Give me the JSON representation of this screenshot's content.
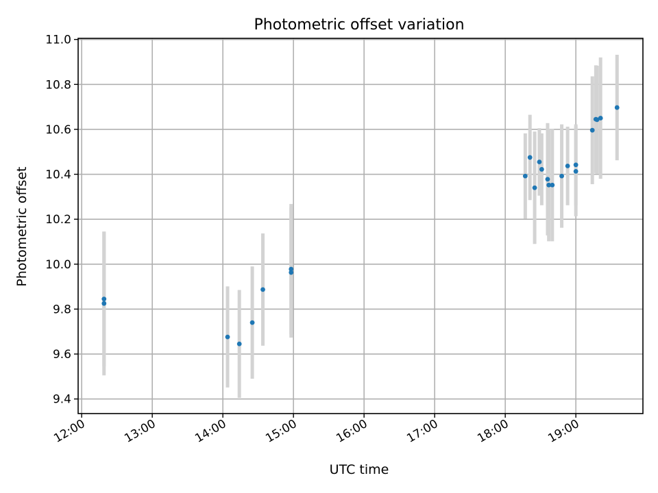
{
  "chart_data": {
    "type": "scatter",
    "title": "Photometric offset variation",
    "xlabel": "UTC time",
    "ylabel": "Photometric offset",
    "x_ticks": [
      "12:00",
      "13:00",
      "14:00",
      "15:00",
      "16:00",
      "17:00",
      "18:00",
      "19:00"
    ],
    "y_ticks": [
      "9.4",
      "9.6",
      "9.8",
      "10.0",
      "10.2",
      "10.4",
      "10.6",
      "10.8",
      "11.0"
    ],
    "xlim": [
      "11:57",
      "19:57"
    ],
    "ylim": [
      9.335,
      11.005
    ],
    "grid": true,
    "colors": {
      "point": "#1f77b4",
      "errorbar": "#d3d3d3"
    },
    "points": [
      {
        "x": "12:19",
        "y": 9.845,
        "err": 0.3
      },
      {
        "x": "12:19",
        "y": 9.825,
        "err": 0.32
      },
      {
        "x": "14:04",
        "y": 9.676,
        "err": 0.225
      },
      {
        "x": "14:14",
        "y": 9.645,
        "err": 0.24
      },
      {
        "x": "14:25",
        "y": 9.74,
        "err": 0.25
      },
      {
        "x": "14:34",
        "y": 9.887,
        "err": 0.25
      },
      {
        "x": "14:58",
        "y": 9.978,
        "err": 0.29
      },
      {
        "x": "14:58",
        "y": 9.963,
        "err": 0.29
      },
      {
        "x": "18:17",
        "y": 10.392,
        "err": 0.19
      },
      {
        "x": "18:21",
        "y": 10.475,
        "err": 0.19
      },
      {
        "x": "18:25",
        "y": 10.34,
        "err": 0.25
      },
      {
        "x": "18:29",
        "y": 10.455,
        "err": 0.15
      },
      {
        "x": "18:31",
        "y": 10.422,
        "err": 0.16
      },
      {
        "x": "18:36",
        "y": 10.378,
        "err": 0.25
      },
      {
        "x": "18:37",
        "y": 10.352,
        "err": 0.25
      },
      {
        "x": "18:40",
        "y": 10.352,
        "err": 0.25
      },
      {
        "x": "18:48",
        "y": 10.392,
        "err": 0.23
      },
      {
        "x": "18:53",
        "y": 10.437,
        "err": 0.175
      },
      {
        "x": "19:00",
        "y": 10.442,
        "err": 0.18
      },
      {
        "x": "19:00",
        "y": 10.413,
        "err": 0.2
      },
      {
        "x": "19:14",
        "y": 10.596,
        "err": 0.24
      },
      {
        "x": "19:17",
        "y": 10.645,
        "err": 0.24
      },
      {
        "x": "19:18",
        "y": 10.643,
        "err": 0.24
      },
      {
        "x": "19:21",
        "y": 10.65,
        "err": 0.27
      },
      {
        "x": "19:35",
        "y": 10.697,
        "err": 0.235
      }
    ]
  }
}
